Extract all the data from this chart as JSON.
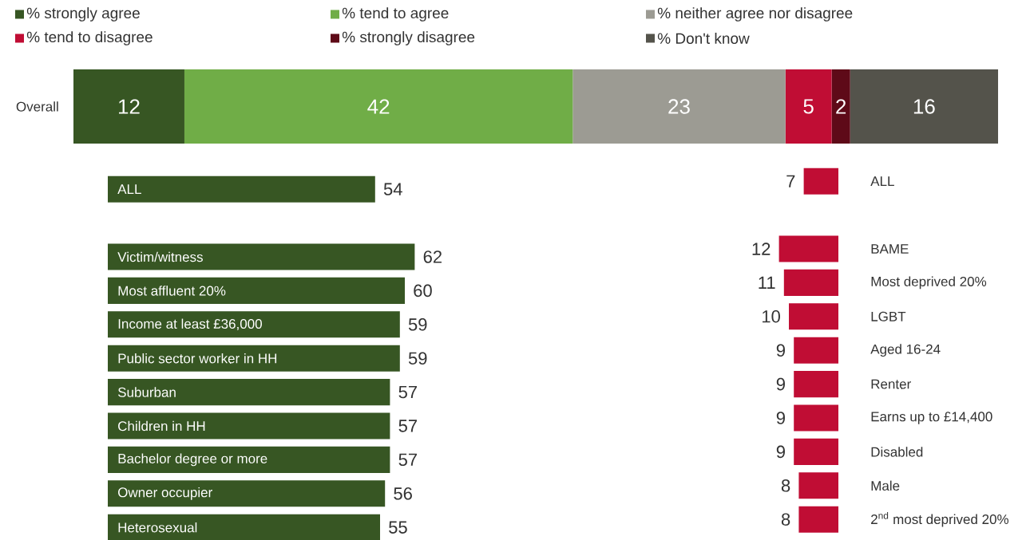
{
  "chart_data": [
    {
      "type": "bar",
      "orientation": "horizontal",
      "stacked": true,
      "categories": [
        "Overall"
      ],
      "data_labels": true,
      "legend": "top",
      "series": [
        {
          "name": "% strongly agree",
          "color": "#375623",
          "values": [
            12
          ]
        },
        {
          "name": "% tend to agree",
          "color": "#70ad47",
          "values": [
            42
          ]
        },
        {
          "name": "% neither agree nor disagree",
          "color": "#9c9b93",
          "values": [
            23
          ]
        },
        {
          "name": "% tend to disagree",
          "color": "#c00d34",
          "values": [
            5
          ]
        },
        {
          "name": "% strongly disagree",
          "color": "#5e0a18",
          "values": [
            2
          ]
        },
        {
          "name": "% Don't know",
          "color": "#54534b",
          "values": [
            16
          ]
        }
      ]
    },
    {
      "type": "bar",
      "orientation": "horizontal",
      "color": "#375623",
      "data_labels": true,
      "categories": [
        "ALL",
        null,
        "Victim/witness",
        "Most affluent 20%",
        "Income at least £36,000",
        "Public sector worker in HH",
        "Suburban",
        "Children in HH",
        "Bachelor degree or more",
        "Owner occupier",
        "Heterosexual"
      ],
      "values": [
        54,
        null,
        62,
        60,
        59,
        59,
        57,
        57,
        57,
        56,
        55
      ]
    },
    {
      "type": "bar",
      "orientation": "horizontal",
      "color": "#c00d34",
      "data_labels": true,
      "categories": [
        "ALL",
        null,
        "BAME",
        "Most deprived 20%",
        "LGBT",
        "Aged 16-24",
        "Renter",
        "Earns up to £14,400",
        "Disabled",
        "Male",
        "2$^{nd}$ most deprived 20%"
      ],
      "values": [
        7,
        null,
        12,
        11,
        10,
        9,
        9,
        9,
        9,
        8,
        8
      ]
    }
  ]
}
